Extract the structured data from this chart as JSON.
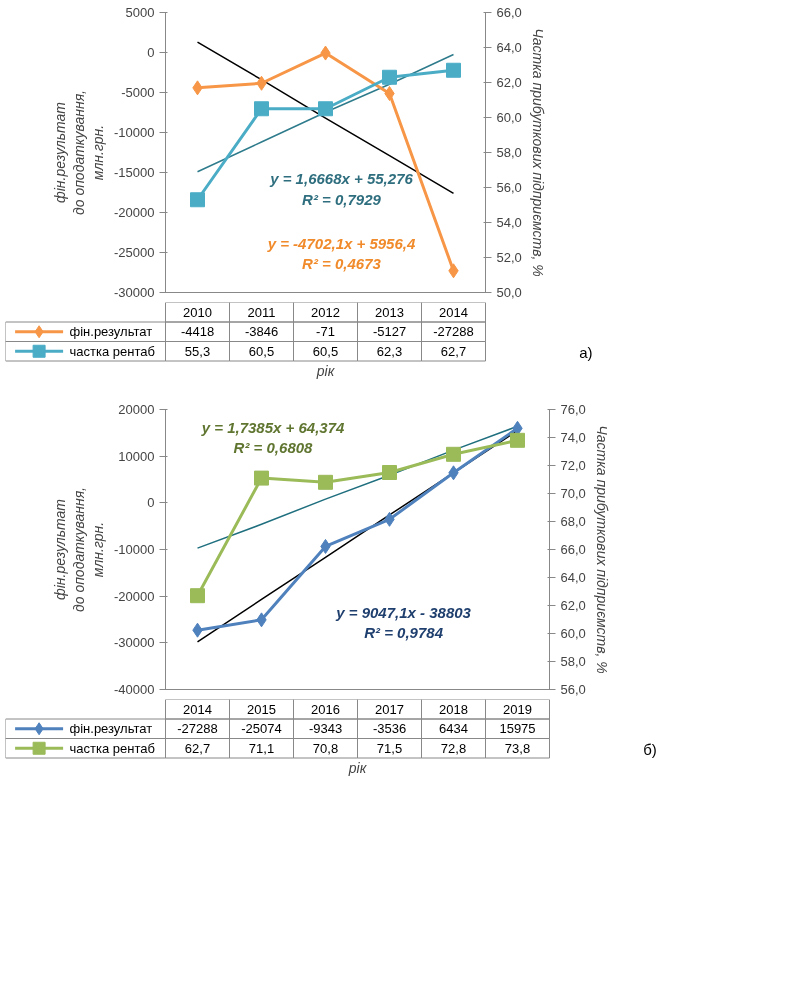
{
  "chart_data": [
    {
      "type": "line",
      "categories": [
        "2010",
        "2011",
        "2012",
        "2013",
        "2014"
      ],
      "ylabel": "фін.результат\nдо оподаткування,\nмлн.грн.",
      "y2label": "Частка прибуткових підприємств, %",
      "xlabel": "рік",
      "ylim": [
        -30000,
        5000
      ],
      "yticks": [
        -30000,
        -25000,
        -20000,
        -15000,
        -10000,
        -5000,
        0,
        5000
      ],
      "y2lim": [
        50,
        66
      ],
      "y2ticks": [
        {
          "value": 50,
          "label": "50,0"
        },
        {
          "value": 52,
          "label": "52,0"
        },
        {
          "value": 54,
          "label": "54,0"
        },
        {
          "value": 56,
          "label": "56,0"
        },
        {
          "value": 58,
          "label": "58,0"
        },
        {
          "value": 60,
          "label": "60,0"
        },
        {
          "value": 62,
          "label": "62,0"
        },
        {
          "value": 64,
          "label": "64,0"
        },
        {
          "value": 66,
          "label": "66,0"
        }
      ],
      "legend": "bottom",
      "annotations": [
        "y = 1,6668x + 55,276\nR² = 0,7929",
        "y = -4702,1x + 5956,4\nR² = 0,4673",
        "а)"
      ],
      "series": [
        {
          "name": "фін.результат",
          "color": "#f79646",
          "marker": "diamond",
          "values": [
            -4418,
            -3846,
            -71,
            -5127,
            -27288
          ],
          "value_labels": [
            "-4418",
            "-3846",
            "-71",
            "-5127",
            "-27288"
          ]
        },
        {
          "name": "частка рентаб",
          "axis": "y2",
          "color": "#4bacc6",
          "marker": "square",
          "values": [
            55.3,
            60.5,
            60.5,
            62.3,
            62.7
          ],
          "value_labels": [
            "55,3",
            "60,5",
            "60,5",
            "62,3",
            "62,7"
          ]
        },
        {
          "type": "line",
          "color": "#000000",
          "values": [
            1300,
            -3400,
            -8200,
            -12900,
            -17600
          ]
        },
        {
          "type": "line",
          "axis": "y2",
          "color": "#2e7b8c",
          "values": [
            56.9,
            58.6,
            60.3,
            61.9,
            63.6
          ]
        }
      ]
    },
    {
      "type": "line",
      "categories": [
        "2014",
        "2015",
        "2016",
        "2017",
        "2018",
        "2019"
      ],
      "ylabel": "фін.результат\nдо оподаткування,\nмлн.грн.",
      "y2label": "Частка прибуткових підприємств, %",
      "xlabel": "рік",
      "ylim": [
        -40000,
        20000
      ],
      "yticks": [
        -40000,
        -30000,
        -20000,
        -10000,
        0,
        10000,
        20000
      ],
      "y2lim": [
        56,
        76
      ],
      "y2ticks": [
        {
          "value": 56,
          "label": "56,0"
        },
        {
          "value": 58,
          "label": "58,0"
        },
        {
          "value": 60,
          "label": "60,0"
        },
        {
          "value": 62,
          "label": "62,0"
        },
        {
          "value": 64,
          "label": "64,0"
        },
        {
          "value": 66,
          "label": "66,0"
        },
        {
          "value": 68,
          "label": "68,0"
        },
        {
          "value": 70,
          "label": "70,0"
        },
        {
          "value": 72,
          "label": "72,0"
        },
        {
          "value": 74,
          "label": "74,0"
        },
        {
          "value": 76,
          "label": "76,0"
        }
      ],
      "legend": "bottom",
      "annotations": [
        "y = 1,7385x + 64,374\nR² = 0,6808",
        "y = 9047,1x - 38803\nR² = 0,9784",
        "б)"
      ],
      "series": [
        {
          "name": "фін.результат",
          "color": "#4f81bd",
          "marker": "diamond",
          "values": [
            -27288,
            -25074,
            -9343,
            -3536,
            6434,
            15975
          ],
          "value_labels": [
            "-27288",
            "-25074",
            "-9343",
            "-3536",
            "6434",
            "15975"
          ]
        },
        {
          "name": "частка рентаб",
          "axis": "y2",
          "color": "#9bbb59",
          "marker": "square",
          "values": [
            62.7,
            71.1,
            70.8,
            71.5,
            72.8,
            73.8
          ],
          "value_labels": [
            "62,7",
            "71,1",
            "70,8",
            "71,5",
            "72,8",
            "73,8"
          ]
        },
        {
          "type": "line",
          "color": "#000000",
          "values": [
            -29800,
            -20700,
            -11700,
            -2600,
            6400,
            15500
          ]
        },
        {
          "type": "line",
          "axis": "y2",
          "color": "#1f6f7f",
          "values": [
            66.1,
            67.8,
            69.6,
            71.3,
            73.1,
            74.8
          ]
        }
      ]
    }
  ]
}
